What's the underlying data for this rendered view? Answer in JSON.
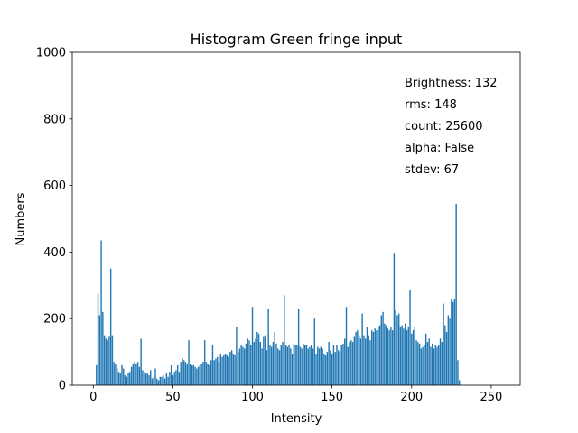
{
  "chart_data": {
    "type": "bar",
    "title": "Histogram Green fringe input",
    "xlabel": "Intensity",
    "ylabel": "Numbers",
    "annotations": [
      "Brightness: 132",
      "rms: 148",
      "count: 25600",
      "alpha: False",
      "stdev: 67"
    ],
    "color": "#1f77b4",
    "bar_width": 0.8,
    "xlim": [
      -13.2,
      268.2
    ],
    "xticks": [
      0,
      50,
      100,
      150,
      200,
      250
    ],
    "ylim": [
      0,
      1000
    ],
    "yticks": [
      0,
      200,
      400,
      600,
      800,
      1000
    ],
    "x": [
      0,
      1,
      2,
      3,
      4,
      5,
      6,
      7,
      8,
      9,
      10,
      11,
      12,
      13,
      14,
      15,
      16,
      17,
      18,
      19,
      20,
      21,
      22,
      23,
      24,
      25,
      26,
      27,
      28,
      29,
      30,
      31,
      32,
      33,
      34,
      35,
      36,
      37,
      38,
      39,
      40,
      41,
      42,
      43,
      44,
      45,
      46,
      47,
      48,
      49,
      50,
      51,
      52,
      53,
      54,
      55,
      56,
      57,
      58,
      59,
      60,
      61,
      62,
      63,
      64,
      65,
      66,
      67,
      68,
      69,
      70,
      71,
      72,
      73,
      74,
      75,
      76,
      77,
      78,
      79,
      80,
      81,
      82,
      83,
      84,
      85,
      86,
      87,
      88,
      89,
      90,
      91,
      92,
      93,
      94,
      95,
      96,
      97,
      98,
      99,
      100,
      101,
      102,
      103,
      104,
      105,
      106,
      107,
      108,
      109,
      110,
      111,
      112,
      113,
      114,
      115,
      116,
      117,
      118,
      119,
      120,
      121,
      122,
      123,
      124,
      125,
      126,
      127,
      128,
      129,
      130,
      131,
      132,
      133,
      134,
      135,
      136,
      137,
      138,
      139,
      140,
      141,
      142,
      143,
      144,
      145,
      146,
      147,
      148,
      149,
      150,
      151,
      152,
      153,
      154,
      155,
      156,
      157,
      158,
      159,
      160,
      161,
      162,
      163,
      164,
      165,
      166,
      167,
      168,
      169,
      170,
      171,
      172,
      173,
      174,
      175,
      176,
      177,
      178,
      179,
      180,
      181,
      182,
      183,
      184,
      185,
      186,
      187,
      188,
      189,
      190,
      191,
      192,
      193,
      194,
      195,
      196,
      197,
      198,
      199,
      200,
      201,
      202,
      203,
      204,
      205,
      206,
      207,
      208,
      209,
      210,
      211,
      212,
      213,
      214,
      215,
      216,
      217,
      218,
      219,
      220,
      221,
      222,
      223,
      224,
      225,
      226,
      227,
      228,
      229,
      230,
      231,
      232,
      233,
      234,
      235,
      236,
      237,
      238,
      239,
      240,
      241,
      242,
      243,
      244,
      245,
      246,
      247,
      248,
      249,
      250,
      251,
      252,
      253,
      254,
      255
    ],
    "values": [
      0,
      0,
      60,
      275,
      210,
      435,
      220,
      150,
      140,
      135,
      145,
      350,
      150,
      70,
      65,
      50,
      40,
      35,
      60,
      50,
      30,
      25,
      35,
      40,
      55,
      65,
      70,
      65,
      70,
      55,
      140,
      45,
      40,
      35,
      35,
      30,
      45,
      20,
      25,
      50,
      20,
      15,
      25,
      25,
      30,
      20,
      35,
      25,
      40,
      60,
      30,
      40,
      45,
      60,
      40,
      70,
      80,
      75,
      70,
      65,
      135,
      65,
      60,
      60,
      55,
      50,
      55,
      60,
      65,
      70,
      135,
      70,
      65,
      60,
      75,
      120,
      75,
      80,
      85,
      70,
      95,
      85,
      90,
      95,
      90,
      85,
      100,
      105,
      95,
      90,
      175,
      100,
      110,
      120,
      115,
      110,
      125,
      140,
      135,
      120,
      235,
      130,
      140,
      160,
      155,
      130,
      110,
      145,
      150,
      105,
      230,
      120,
      115,
      130,
      160,
      125,
      110,
      105,
      120,
      130,
      270,
      120,
      115,
      120,
      110,
      95,
      125,
      120,
      120,
      230,
      115,
      110,
      125,
      120,
      120,
      110,
      115,
      120,
      110,
      200,
      95,
      115,
      110,
      115,
      110,
      95,
      90,
      100,
      130,
      105,
      95,
      120,
      100,
      120,
      105,
      100,
      120,
      125,
      140,
      235,
      115,
      130,
      135,
      130,
      145,
      160,
      165,
      150,
      140,
      215,
      150,
      140,
      175,
      150,
      135,
      165,
      160,
      170,
      165,
      175,
      180,
      210,
      220,
      185,
      180,
      170,
      165,
      175,
      165,
      395,
      225,
      210,
      215,
      175,
      180,
      170,
      185,
      165,
      175,
      285,
      155,
      165,
      175,
      135,
      130,
      125,
      110,
      115,
      120,
      155,
      130,
      140,
      115,
      125,
      110,
      120,
      115,
      120,
      140,
      130,
      245,
      180,
      160,
      210,
      200,
      260,
      250,
      260,
      545,
      75,
      15,
      0,
      0,
      0,
      0,
      0,
      0,
      0,
      0,
      0,
      0,
      0,
      0,
      0,
      0,
      0,
      0,
      0,
      0,
      0,
      0,
      0,
      0,
      0,
      0,
      0
    ]
  }
}
